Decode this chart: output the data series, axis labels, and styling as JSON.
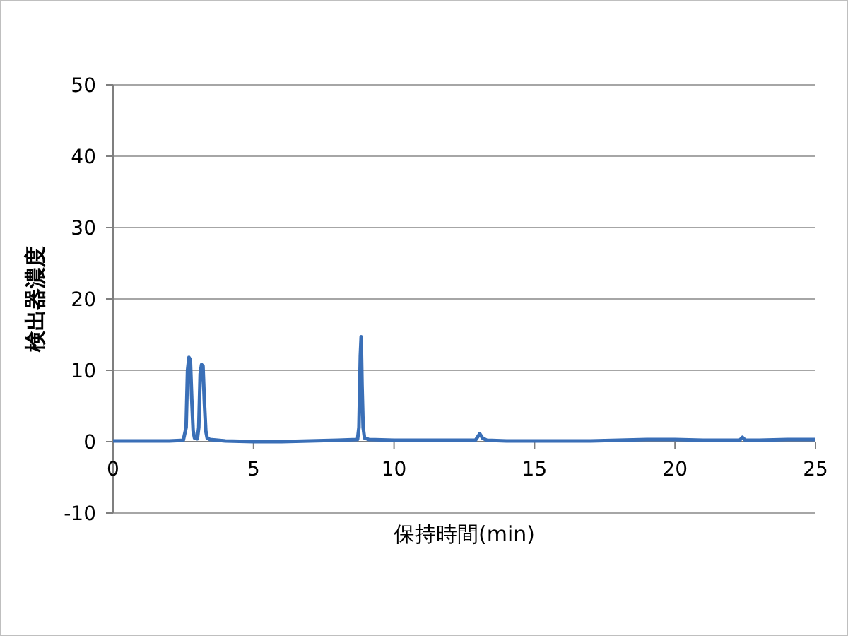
{
  "chart_data": {
    "type": "line",
    "xlabel": "保持時間(min)",
    "ylabel": "検出器濃度",
    "x": [
      0,
      1,
      2,
      2.5,
      2.6,
      2.65,
      2.7,
      2.75,
      2.8,
      2.85,
      2.9,
      3.0,
      3.05,
      3.1,
      3.15,
      3.2,
      3.25,
      3.3,
      3.35,
      3.45,
      4,
      5,
      6,
      7,
      8,
      8.7,
      8.75,
      8.8,
      8.83,
      8.86,
      8.9,
      8.95,
      9.1,
      10,
      11,
      12,
      12.9,
      13.05,
      13.15,
      13.3,
      14,
      15,
      16,
      17,
      18,
      19,
      20,
      21,
      22,
      22.3,
      22.4,
      22.5,
      23,
      24,
      25
    ],
    "series": [
      {
        "color": "#3a6fb7",
        "values": [
          0.1,
          0.1,
          0.1,
          0.2,
          2,
          10,
          11.8,
          11.5,
          6,
          1.5,
          0.5,
          0.4,
          2,
          9.5,
          10.8,
          10.6,
          5.5,
          1.5,
          0.5,
          0.3,
          0.1,
          0,
          0,
          0.1,
          0.2,
          0.3,
          2,
          12,
          14.7,
          8,
          2,
          0.5,
          0.3,
          0.2,
          0.2,
          0.2,
          0.2,
          1.1,
          0.5,
          0.2,
          0.1,
          0.1,
          0.1,
          0.1,
          0.2,
          0.3,
          0.3,
          0.2,
          0.2,
          0.2,
          0.6,
          0.2,
          0.2,
          0.3,
          0.3
        ]
      }
    ],
    "xlim": [
      0,
      25
    ],
    "xticks": [
      0,
      5,
      10,
      15,
      20,
      25
    ],
    "ylim": [
      -10,
      50
    ],
    "yticks": [
      -10,
      0,
      10,
      20,
      30,
      40,
      50
    ],
    "grid": "y",
    "line_style": "solid",
    "marker": "none"
  }
}
